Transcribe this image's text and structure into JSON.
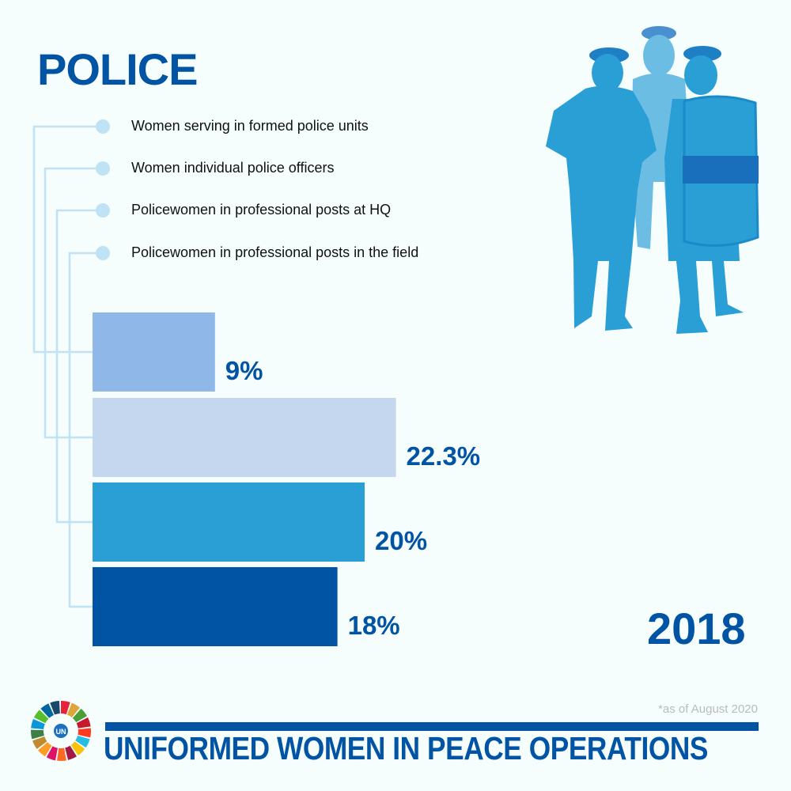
{
  "header": {
    "title": "POLICE"
  },
  "year": "2018",
  "footnote": "*as of August 2020",
  "footer": {
    "title": "UNIFORMED WOMEN IN PEACE OPERATIONS",
    "logo_text": "UN"
  },
  "chart_data": {
    "type": "bar",
    "orientation": "horizontal",
    "categories": [
      "Women serving in formed police units",
      "Women individual police officers",
      "Policewomen in professional posts at HQ",
      "Policewomen in professional posts in the field"
    ],
    "values": [
      9,
      22.3,
      20,
      18
    ],
    "value_labels": [
      "9%",
      "22.3%",
      "20%",
      "18%"
    ],
    "colors": [
      "#8fb8e8",
      "#c5d7ee",
      "#2a9fd6",
      "#0153a3"
    ],
    "unit": "%",
    "grid": false,
    "legend_placement": "top-left"
  },
  "colors": {
    "brand": "#0153a3",
    "connector": "#bfe2f4",
    "silhouette": "#2a9fd6"
  }
}
